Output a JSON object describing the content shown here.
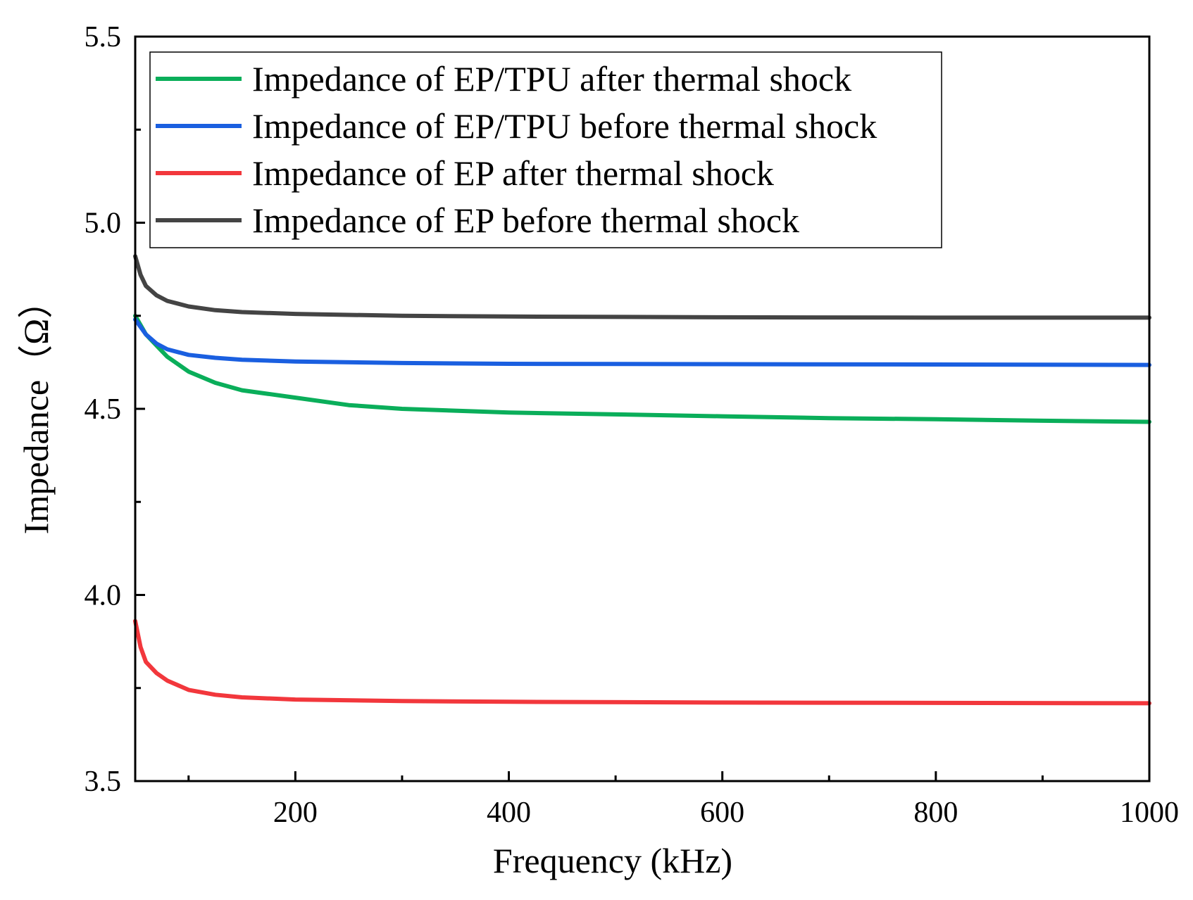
{
  "chart_data": {
    "type": "line",
    "title": "",
    "xlabel": "Frequency (kHz)",
    "ylabel": "Impedance（Ω）",
    "xlim": [
      50,
      1000
    ],
    "ylim": [
      3.5,
      5.5
    ],
    "x_ticks": [
      200,
      400,
      600,
      800,
      1000
    ],
    "x_tick_labels": [
      "200",
      "400",
      "600",
      "800",
      "1000"
    ],
    "x_minor_ticks": [
      100,
      300,
      500,
      700,
      900
    ],
    "y_ticks": [
      3.5,
      4.0,
      4.5,
      5.0,
      5.5
    ],
    "y_tick_labels": [
      "3.5",
      "4.0",
      "4.5",
      "5.0",
      "5.5"
    ],
    "y_minor_ticks": [
      3.75,
      4.25,
      4.75,
      5.25
    ],
    "grid": false,
    "legend_position": "top-left",
    "series": [
      {
        "name": "Impedance of EP/TPU after thermal shock",
        "color": "#0aae5a",
        "x": [
          50,
          60,
          70,
          80,
          100,
          125,
          150,
          200,
          250,
          300,
          400,
          500,
          600,
          700,
          800,
          900,
          1000
        ],
        "y": [
          4.75,
          4.7,
          4.67,
          4.64,
          4.6,
          4.57,
          4.55,
          4.53,
          4.51,
          4.5,
          4.49,
          4.485,
          4.48,
          4.475,
          4.472,
          4.468,
          4.465
        ]
      },
      {
        "name": "Impedance of EP/TPU before thermal shock",
        "color": "#1a5fe0",
        "x": [
          50,
          60,
          70,
          80,
          100,
          125,
          150,
          200,
          300,
          400,
          600,
          800,
          1000
        ],
        "y": [
          4.74,
          4.7,
          4.675,
          4.66,
          4.645,
          4.637,
          4.632,
          4.627,
          4.623,
          4.621,
          4.62,
          4.619,
          4.618
        ]
      },
      {
        "name": "Impedance of EP after thermal shock",
        "color": "#f2373c",
        "x": [
          50,
          55,
          60,
          70,
          80,
          100,
          125,
          150,
          200,
          300,
          400,
          600,
          800,
          1000
        ],
        "y": [
          3.93,
          3.86,
          3.82,
          3.79,
          3.77,
          3.745,
          3.732,
          3.725,
          3.719,
          3.715,
          3.713,
          3.711,
          3.71,
          3.709
        ]
      },
      {
        "name": "Impedance of EP before thermal shock",
        "color": "#444444",
        "x": [
          50,
          55,
          60,
          70,
          80,
          100,
          125,
          150,
          200,
          300,
          400,
          600,
          800,
          1000
        ],
        "y": [
          4.91,
          4.86,
          4.83,
          4.805,
          4.79,
          4.775,
          4.765,
          4.76,
          4.755,
          4.75,
          4.748,
          4.746,
          4.745,
          4.745
        ]
      }
    ]
  }
}
